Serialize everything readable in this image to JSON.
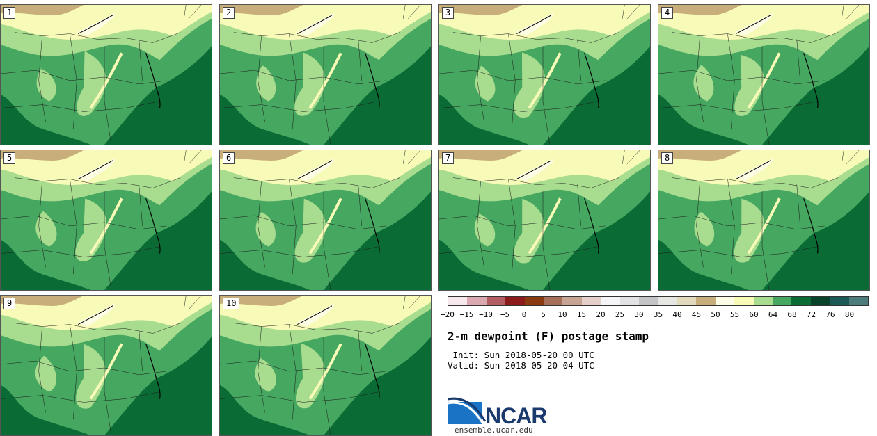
{
  "panels": [
    "1",
    "2",
    "3",
    "4",
    "5",
    "6",
    "7",
    "8",
    "9",
    "10"
  ],
  "colorbar": {
    "colors": [
      "#f6e8ec",
      "#d9a8b0",
      "#b35d64",
      "#8c1c1c",
      "#8a3a12",
      "#a67058",
      "#c7a394",
      "#e4d0c8",
      "#f5f4f6",
      "#e2e2e4",
      "#c4c4c6",
      "#e6e6e2",
      "#e3d9bd",
      "#c7ae7a",
      "#fdfce4",
      "#f8fab7",
      "#a8dc8f",
      "#46a760",
      "#0b6b35",
      "#06432a",
      "#1b5a57",
      "#4d7c7c"
    ],
    "ticks": [
      "−20",
      "−15",
      "−10",
      "−5",
      "0",
      "5",
      "10",
      "15",
      "20",
      "25",
      "30",
      "35",
      "40",
      "45",
      "50",
      "55",
      "60",
      "64",
      "68",
      "72",
      "76",
      "80"
    ]
  },
  "title": "2-m dewpoint (F) postage stamp",
  "init": " Init: Sun 2018-05-20 00 UTC",
  "valid": "Valid: Sun 2018-05-20 04 UTC",
  "logo": {
    "name": "NCAR",
    "url": "ensemble.ucar.edu"
  }
}
